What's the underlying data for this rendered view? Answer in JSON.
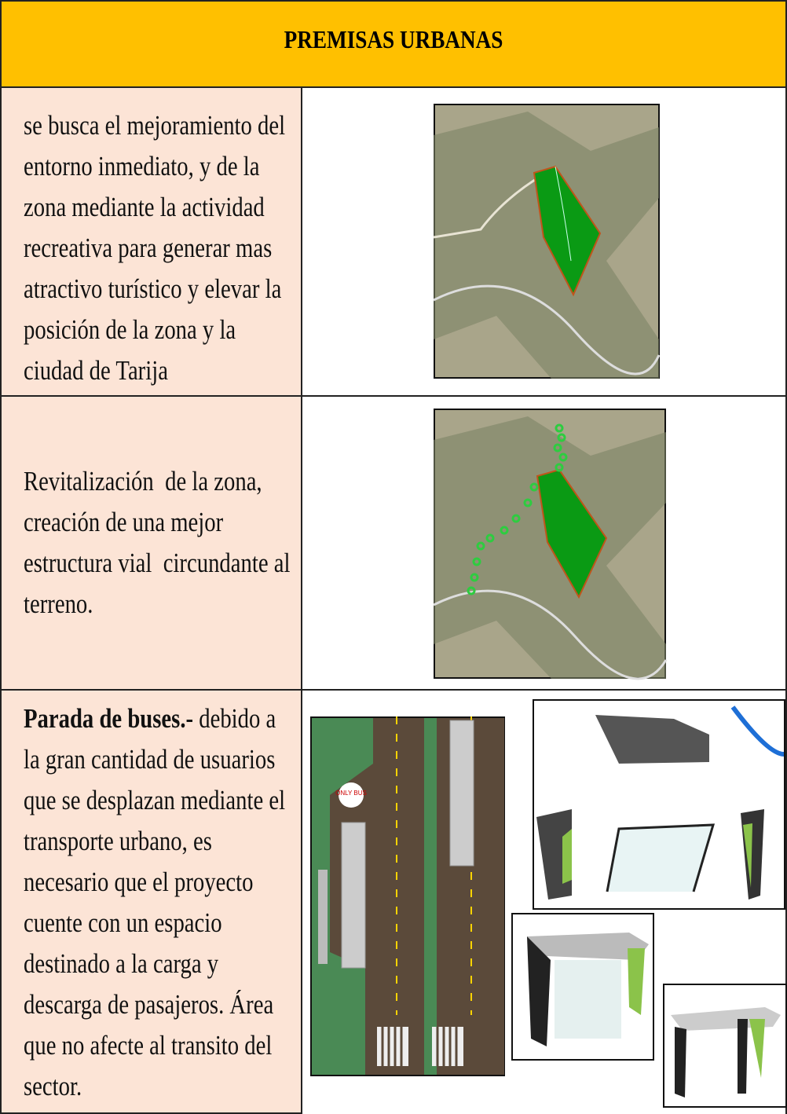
{
  "header": {
    "title": "PREMISAS URBANAS"
  },
  "table": {
    "rows": [
      {
        "lines": [
          "se busca el mejoramiento del",
          "entorno inmediato, y de la",
          "zona mediante la actividad",
          "recreativa para generar mas",
          "atractivo turístico y elevar la",
          "posición de la zona y la",
          "ciudad de Tarija"
        ]
      },
      {
        "lines": [
          "Revitalización  de la zona,",
          "creación de una mejor",
          "estructura vial  circundante al",
          "terreno."
        ]
      },
      {
        "lead": "Parada de buses.-",
        "lines": [
          " debido a",
          "la gran cantidad de usuarios",
          "que se desplazan mediante el",
          "transporte urbano, es",
          "necesario que el proyecto",
          "cuente con un espacio",
          "destinado a la carga y",
          "descarga de pasajeros. Área",
          "que no afecte al transito del",
          "sector."
        ]
      }
    ]
  },
  "images": {
    "bus_sign": "ONLY BUS"
  }
}
